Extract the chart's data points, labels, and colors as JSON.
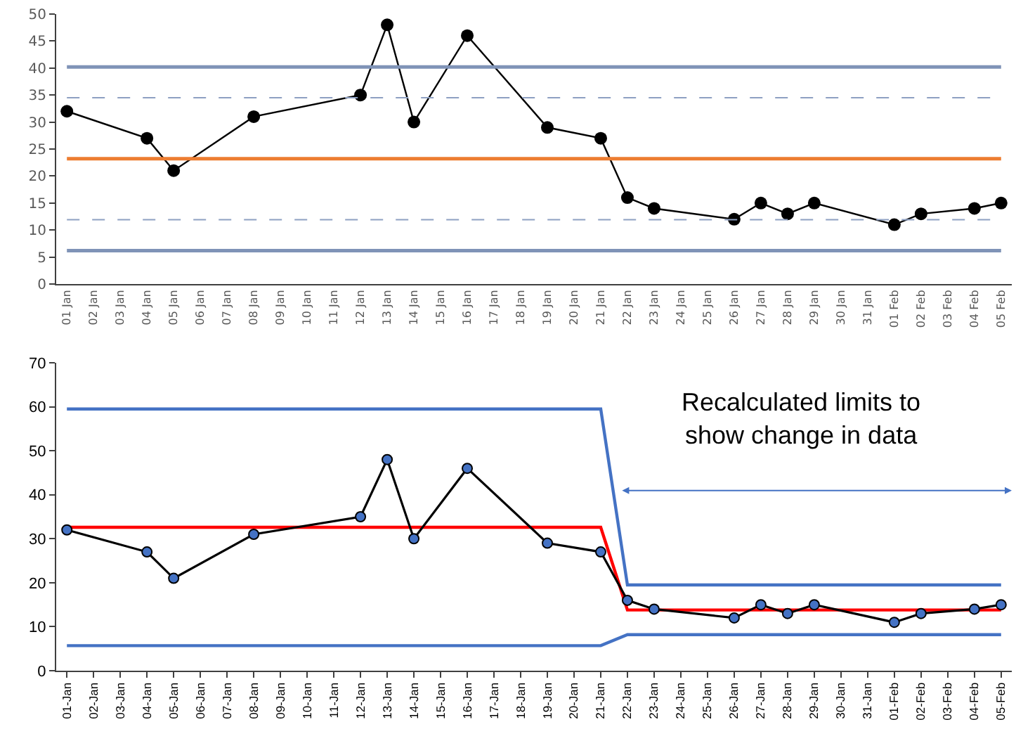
{
  "chart_data": [
    {
      "type": "line",
      "categories": [
        "01 Jan",
        "02 Jan",
        "03 Jan",
        "04 Jan",
        "05 Jan",
        "06 Jan",
        "07 Jan",
        "08 Jan",
        "09 Jan",
        "10 Jan",
        "11 Jan",
        "12 Jan",
        "13 Jan",
        "14 Jan",
        "15 Jan",
        "16 Jan",
        "17 Jan",
        "18 Jan",
        "19 Jan",
        "20 Jan",
        "21 Jan",
        "22 Jan",
        "23 Jan",
        "24 Jan",
        "25 Jan",
        "26 Jan",
        "27 Jan",
        "28 Jan",
        "29 Jan",
        "30 Jan",
        "31 Jan",
        "01 Feb",
        "02 Feb",
        "03 Feb",
        "04 Feb",
        "05 Feb"
      ],
      "series": [
        {
          "color": "#000000",
          "marker": "circle",
          "values": [
            32,
            null,
            null,
            27,
            21,
            null,
            null,
            31,
            null,
            null,
            null,
            35,
            48,
            30,
            null,
            46,
            null,
            null,
            29,
            null,
            27,
            16,
            14,
            null,
            null,
            12,
            15,
            13,
            15,
            null,
            null,
            11,
            13,
            null,
            14,
            15
          ]
        }
      ],
      "ylim": [
        0,
        50
      ],
      "yticks": [
        0,
        5,
        10,
        15,
        20,
        25,
        30,
        35,
        40,
        45,
        50
      ],
      "ref_lines": [
        {
          "axis": "y",
          "value": 40.2,
          "color": "#7f93b7",
          "line_style": "solid"
        },
        {
          "axis": "y",
          "value": 34.5,
          "color": "#8ea0c2",
          "line_style": "dashed"
        },
        {
          "axis": "y",
          "value": 23.2,
          "color": "#ed7d31",
          "line_style": "solid"
        },
        {
          "axis": "y",
          "value": 11.9,
          "color": "#8ea0c2",
          "line_style": "dashed"
        },
        {
          "axis": "y",
          "value": 6.2,
          "color": "#7f93b7",
          "line_style": "solid"
        }
      ]
    },
    {
      "type": "line",
      "categories": [
        "01-Jan",
        "02-Jan",
        "03-Jan",
        "04-Jan",
        "05-Jan",
        "06-Jan",
        "07-Jan",
        "08-Jan",
        "09-Jan",
        "10-Jan",
        "11-Jan",
        "12-Jan",
        "13-Jan",
        "14-Jan",
        "15-Jan",
        "16-Jan",
        "17-Jan",
        "18-Jan",
        "19-Jan",
        "20-Jan",
        "21-Jan",
        "22-Jan",
        "23-Jan",
        "24-Jan",
        "25-Jan",
        "26-Jan",
        "27-Jan",
        "28-Jan",
        "29-Jan",
        "30-Jan",
        "31-Jan",
        "01-Feb",
        "02-Feb",
        "03-Feb",
        "04-Feb",
        "05-Feb"
      ],
      "series": [
        {
          "color": "#4472c4",
          "marker": "none",
          "values": [
            59.5,
            59.5,
            59.5,
            59.5,
            59.5,
            59.5,
            59.5,
            59.5,
            59.5,
            59.5,
            59.5,
            59.5,
            59.5,
            59.5,
            59.5,
            59.5,
            59.5,
            59.5,
            59.5,
            59.5,
            59.5,
            19.5,
            19.5,
            19.5,
            19.5,
            19.5,
            19.5,
            19.5,
            19.5,
            19.5,
            19.5,
            19.5,
            19.5,
            19.5,
            19.5,
            19.5
          ]
        },
        {
          "color": "#4472c4",
          "marker": "none",
          "values": [
            5.7,
            5.7,
            5.7,
            5.7,
            5.7,
            5.7,
            5.7,
            5.7,
            5.7,
            5.7,
            5.7,
            5.7,
            5.7,
            5.7,
            5.7,
            5.7,
            5.7,
            5.7,
            5.7,
            5.7,
            5.7,
            8.2,
            8.2,
            8.2,
            8.2,
            8.2,
            8.2,
            8.2,
            8.2,
            8.2,
            8.2,
            8.2,
            8.2,
            8.2,
            8.2,
            8.2
          ]
        },
        {
          "color": "#ff0000",
          "marker": "none",
          "values": [
            32.6,
            32.6,
            32.6,
            32.6,
            32.6,
            32.6,
            32.6,
            32.6,
            32.6,
            32.6,
            32.6,
            32.6,
            32.6,
            32.6,
            32.6,
            32.6,
            32.6,
            32.6,
            32.6,
            32.6,
            32.6,
            13.8,
            13.8,
            13.8,
            13.8,
            13.8,
            13.8,
            13.8,
            13.8,
            13.8,
            13.8,
            13.8,
            13.8,
            13.8,
            13.8,
            13.8
          ]
        },
        {
          "color": "#4472c4",
          "marker": "circle",
          "values": [
            32,
            null,
            null,
            27,
            21,
            null,
            null,
            31,
            null,
            null,
            null,
            35,
            48,
            30,
            null,
            46,
            null,
            null,
            29,
            null,
            27,
            16,
            14,
            null,
            null,
            12,
            15,
            13,
            15,
            null,
            null,
            11,
            13,
            null,
            14,
            15
          ]
        }
      ],
      "ylim": [
        0,
        70
      ],
      "yticks": [
        0,
        10,
        20,
        30,
        40,
        50,
        60,
        70
      ],
      "annotations": [
        "Recalculated limits to show change in data"
      ]
    }
  ]
}
